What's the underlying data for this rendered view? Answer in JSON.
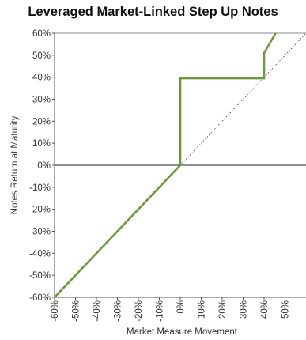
{
  "chart_data": {
    "type": "line",
    "title": "Leveraged Market-Linked Step Up Notes",
    "xlabel": "Market Measure Movement",
    "ylabel": "Notes Return at Maturity",
    "xlim": [
      -60,
      60
    ],
    "ylim": [
      -60,
      60
    ],
    "x_ticks": [
      "-60%",
      "-50%",
      "-40%",
      "-30%",
      "-20%",
      "-10%",
      "0%",
      "10%",
      "20%",
      "30%",
      "40%",
      "50%"
    ],
    "x_tick_values": [
      -60,
      -50,
      -40,
      -30,
      -20,
      -10,
      0,
      10,
      20,
      30,
      40,
      50
    ],
    "y_ticks": [
      "60%",
      "50%",
      "40%",
      "30%",
      "20%",
      "10%",
      "0%",
      "-10%",
      "-20%",
      "-30%",
      "-40%",
      "-50%",
      "-60%"
    ],
    "y_tick_values": [
      60,
      50,
      40,
      30,
      20,
      10,
      0,
      -10,
      -20,
      -30,
      -40,
      -50,
      -60
    ],
    "grid": false,
    "series": [
      {
        "role": "notes-return",
        "color": "#6a9a3c",
        "style": "solid",
        "x": [
          -60,
          0,
          0,
          40,
          40,
          45.5
        ],
        "y": [
          -60,
          0,
          39.5,
          39.5,
          51,
          60
        ]
      },
      {
        "role": "market-measure-reference",
        "color": "#555555",
        "style": "dotted",
        "x": [
          0,
          60
        ],
        "y": [
          0,
          60
        ]
      }
    ]
  }
}
